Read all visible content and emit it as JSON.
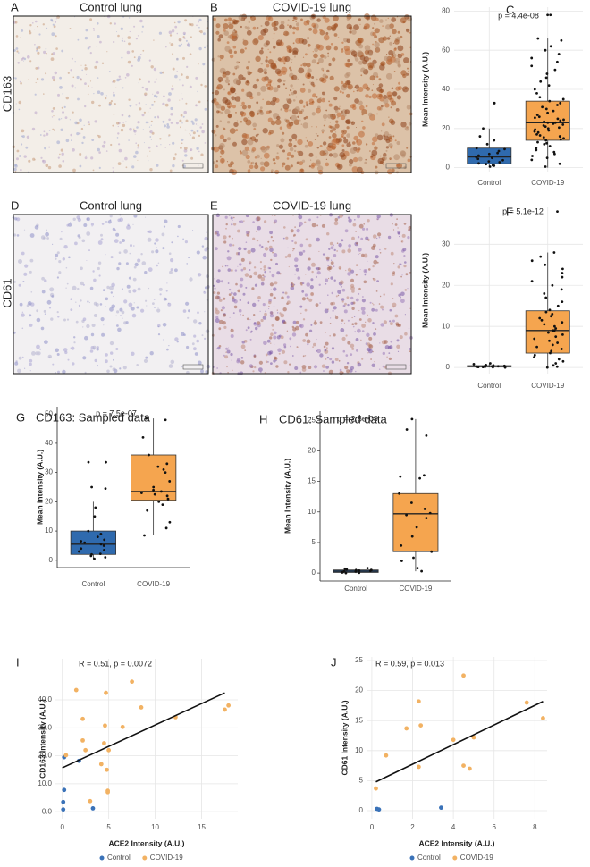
{
  "images": [
    {
      "letter": "A",
      "title": "Control lung"
    },
    {
      "letter": "B",
      "title": "COVID-19 lung"
    },
    {
      "letter": "D",
      "title": "Control lung"
    },
    {
      "letter": "E",
      "title": "COVID-19 lung"
    }
  ],
  "row_labels": [
    "CD163",
    "CD61"
  ],
  "chart_data": [
    {
      "type": "box",
      "label": "C",
      "annotation": "p = 4.4e-08",
      "y_label": "Mean Intensity (A.U.)",
      "categories": [
        "Control",
        "COVID-19"
      ],
      "colors": [
        "#2f6aae",
        "#f5a54f"
      ],
      "boxes": [
        {
          "min": 0.5,
          "q1": 2,
          "median": 5.5,
          "q3": 10,
          "max": 20
        },
        {
          "min": 0,
          "q1": 14,
          "median": 23,
          "q3": 34,
          "max": 66
        }
      ],
      "points": [
        [
          0.5,
          1,
          1.2,
          1.8,
          2.2,
          2.8,
          3.2,
          3.8,
          4.5,
          5,
          5.5,
          6.2,
          7,
          7.5,
          8.5,
          9.5,
          10,
          12,
          14,
          16,
          20,
          33,
          33
        ],
        [
          0.5,
          2,
          4,
          5,
          6,
          7,
          8,
          9,
          10,
          11,
          12,
          12.5,
          13,
          14,
          14.5,
          15,
          15.5,
          16,
          16.5,
          17,
          18,
          18.5,
          19,
          19.5,
          20,
          20.5,
          21,
          21.5,
          22,
          22.5,
          23,
          23,
          23.5,
          24,
          24.5,
          25,
          25.5,
          26,
          27,
          28,
          29,
          30,
          31,
          32,
          33,
          34,
          35,
          36,
          38,
          40,
          42,
          44,
          46,
          48,
          50,
          52,
          54,
          56,
          58,
          60,
          62,
          65,
          66,
          78,
          78
        ]
      ],
      "ylim": [
        -2,
        82
      ],
      "yticks": [
        0,
        20,
        40,
        60,
        80
      ],
      "grid": true
    },
    {
      "type": "box",
      "label": "F",
      "annotation": "p = 5.1e-12",
      "y_label": "Mean Intensity (A.U.)",
      "categories": [
        "Control",
        "COVID-19"
      ],
      "colors": [
        "#2f6aae",
        "#f5a54f"
      ],
      "boxes": [
        {
          "min": 0,
          "q1": 0.15,
          "median": 0.3,
          "q3": 0.45,
          "max": 0.8
        },
        {
          "min": 0,
          "q1": 3.5,
          "median": 9,
          "q3": 13.8,
          "max": 28
        }
      ],
      "points": [
        [
          0,
          0.05,
          0.1,
          0.1,
          0.15,
          0.2,
          0.2,
          0.25,
          0.3,
          0.3,
          0.35,
          0.4,
          0.5,
          0.6,
          0.8,
          1
        ],
        [
          0,
          0.2,
          0.5,
          1,
          1.5,
          2,
          2.5,
          3,
          3.5,
          4,
          4.5,
          5,
          5.5,
          6,
          6.5,
          7,
          7.5,
          8,
          8.5,
          9,
          9,
          9.5,
          10,
          10.5,
          11,
          11.5,
          12,
          12.5,
          13,
          13.5,
          14,
          15,
          16,
          17,
          18,
          19,
          20,
          21,
          22,
          23,
          24,
          25,
          26,
          27,
          28,
          38
        ]
      ],
      "ylim": [
        -1.5,
        39
      ],
      "yticks": [
        0,
        10,
        20,
        30
      ],
      "grid": true
    },
    {
      "type": "box",
      "label": "G",
      "title": "CD163: Sampled data",
      "annotation": "p = 7.5e-07",
      "y_label": "Mean Intensity (A.U.)",
      "categories": [
        "Control",
        "COVID-19"
      ],
      "colors": [
        "#2f6aae",
        "#f5a54f"
      ],
      "boxes": [
        {
          "min": 0.5,
          "q1": 2,
          "median": 5.5,
          "q3": 10,
          "max": 20
        },
        {
          "min": 8.5,
          "q1": 20.5,
          "median": 23.5,
          "q3": 36,
          "max": 48.5
        }
      ],
      "points": [
        [
          0.5,
          1,
          1.5,
          2,
          2.2,
          3,
          3.5,
          4,
          5,
          5.5,
          6,
          6.5,
          7,
          8,
          9,
          10,
          15,
          18,
          24.5,
          25,
          33.5,
          33.5
        ],
        [
          8.5,
          11,
          13,
          17,
          19,
          20,
          21,
          22,
          22.5,
          23,
          23.5,
          24,
          25,
          27,
          30,
          31,
          32,
          33,
          36,
          42,
          48,
          48.5
        ]
      ],
      "ylim": [
        -2.5,
        52.5
      ],
      "yticks": [
        0,
        10,
        20,
        30,
        40,
        50
      ],
      "grid": false
    },
    {
      "type": "box",
      "label": "H",
      "title": "CD61: Sampled data",
      "annotation": "p = 2.8e-09",
      "y_label": "Mean Intensity (A.U.)",
      "categories": [
        "Control",
        "COVID-19"
      ],
      "colors": [
        "#2f6aae",
        "#f5a54f"
      ],
      "boxes": [
        {
          "min": 0,
          "q1": 0.1,
          "median": 0.3,
          "q3": 0.5,
          "max": 0.8
        },
        {
          "min": 0.3,
          "q1": 3.5,
          "median": 9.7,
          "q3": 13,
          "max": 25.2
        }
      ],
      "points": [
        [
          0,
          0.05,
          0.1,
          0.1,
          0.15,
          0.2,
          0.25,
          0.3,
          0.3,
          0.35,
          0.4,
          0.45,
          0.5,
          0.6,
          0.7,
          0.8
        ],
        [
          0.3,
          0.8,
          2,
          2.5,
          3.5,
          4.5,
          6,
          7.5,
          9,
          9.5,
          9.8,
          10.5,
          11.5,
          13,
          15.5,
          15.8,
          16,
          22.5,
          23.5,
          25.2
        ]
      ],
      "ylim": [
        -1.3,
        26.5
      ],
      "yticks": [
        0,
        5,
        10,
        15,
        20,
        25
      ],
      "grid": false
    },
    {
      "type": "scatter",
      "label": "I",
      "annotation": "R = 0.51, p = 0.0072",
      "x_label": "ACE2 Intensity (A.U.)",
      "y_label": "CD163 Intensity (A.U.)",
      "series": [
        {
          "name": "Control",
          "color": "#3a72b8",
          "x": [
            0.2,
            0.2,
            0.1,
            0.1,
            3.3,
            1.8
          ],
          "y": [
            19.5,
            7.8,
            3.5,
            0.8,
            1.2,
            18.2
          ]
        },
        {
          "name": "COVID-19",
          "color": "#f2b263",
          "x": [
            0.4,
            1.5,
            2.2,
            2.2,
            2.5,
            4.5,
            4.6,
            4.7,
            4.8,
            4.9,
            4.9,
            4.2,
            3,
            6.5,
            7.5,
            8.5,
            12.2,
            17.5,
            17.9,
            5
          ],
          "y": [
            20.2,
            43.5,
            33.2,
            25.5,
            22,
            24.5,
            30.8,
            42.5,
            15,
            7.5,
            7,
            17,
            3.8,
            30.3,
            46.5,
            37.3,
            33.8,
            36.5,
            38,
            22
          ]
        }
      ],
      "fit": {
        "x": [
          0,
          17.5
        ],
        "y": [
          15.7,
          42.5
        ]
      },
      "xlim": [
        -0.74,
        18.9
      ],
      "ylim": [
        -2.5,
        54.7
      ],
      "xticks": [
        0,
        5,
        10,
        15
      ],
      "yticks": [
        {
          "value": 0,
          "label": "0.0"
        },
        {
          "value": 10,
          "label": "10.0"
        },
        {
          "value": 20,
          "label": "20.0"
        },
        {
          "value": 30,
          "label": "30.0"
        },
        {
          "value": 40,
          "label": "40.0"
        }
      ],
      "grid": true,
      "legend": "bottom"
    },
    {
      "type": "scatter",
      "label": "J",
      "annotation": "R = 0.59, p = 0.013",
      "x_label": "ACE2 Intensity (A.U.)",
      "y_label": "CD61 Intensity (A.U.)",
      "series": [
        {
          "name": "Control",
          "color": "#3a72b8",
          "x": [
            0.25,
            0.35,
            3.4
          ],
          "y": [
            0.3,
            0.2,
            0.5
          ]
        },
        {
          "name": "COVID-19",
          "color": "#f2b263",
          "x": [
            0.2,
            0.7,
            1.7,
            2.3,
            2.4,
            2.3,
            4,
            4.5,
            4.5,
            4.8,
            5,
            7.6,
            8.4
          ],
          "y": [
            3.7,
            9.2,
            13.7,
            18.2,
            14.2,
            7.3,
            11.8,
            22.5,
            7.5,
            7,
            12.2,
            18,
            15.4
          ]
        }
      ],
      "fit": {
        "x": [
          0.2,
          8.4
        ],
        "y": [
          4.8,
          18.2
        ]
      },
      "xlim": [
        -0.26,
        8.6
      ],
      "ylim": [
        -1.34,
        25.6
      ],
      "xticks": [
        0,
        2,
        4,
        6,
        8
      ],
      "yticks": [
        0,
        5,
        10,
        15,
        20,
        25
      ],
      "grid": true,
      "legend": "bottom"
    }
  ]
}
